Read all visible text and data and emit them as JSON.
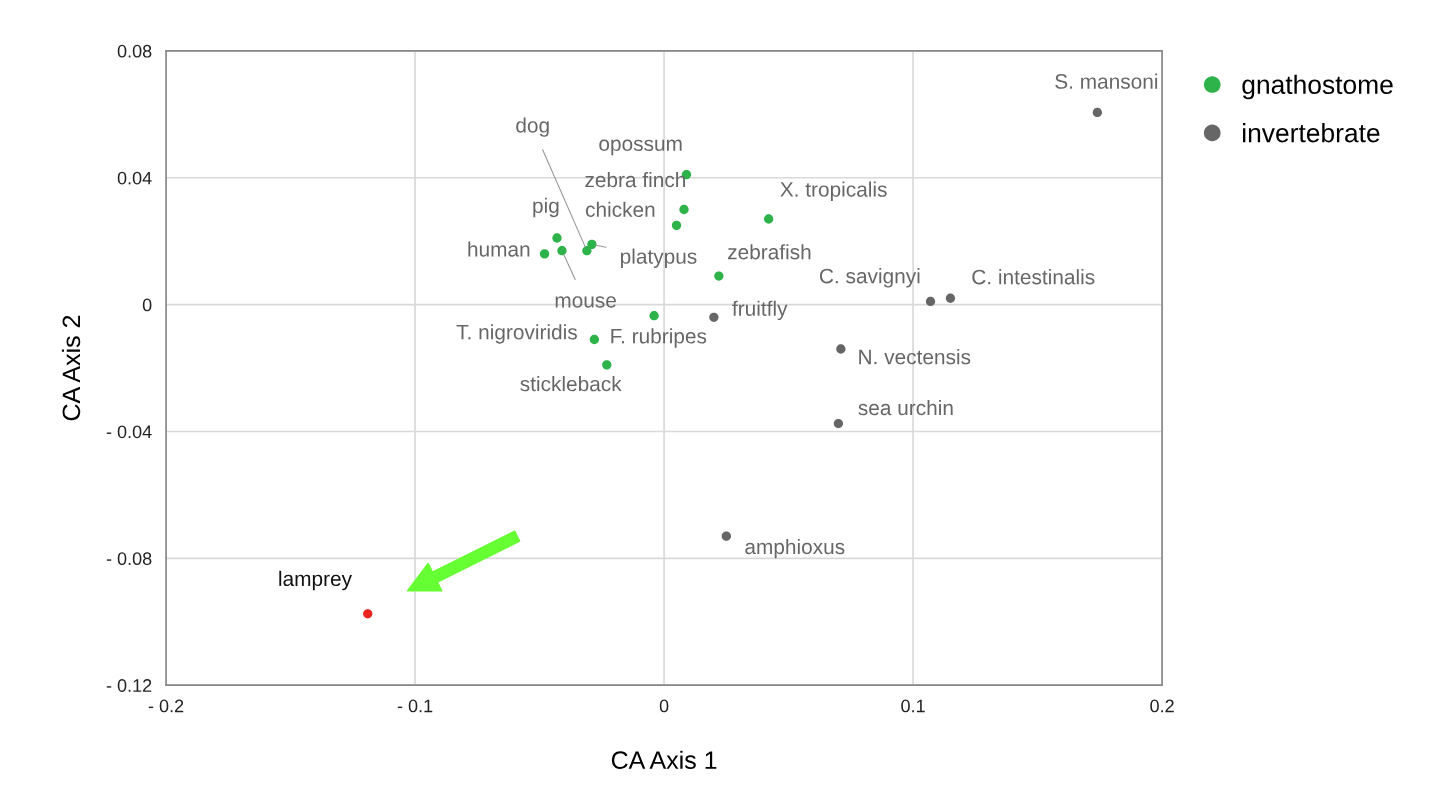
{
  "chart_data": {
    "type": "scatter",
    "xlabel": "CA Axis 1",
    "ylabel": "CA Axis 2",
    "xlim": [
      -0.2,
      0.2
    ],
    "ylim": [
      -0.12,
      0.08
    ],
    "xticks": [
      {
        "value": -0.2,
        "label": "- 0.2"
      },
      {
        "value": -0.1,
        "label": "- 0.1"
      },
      0,
      0.1,
      0.2
    ],
    "yticks": [
      {
        "value": -0.12,
        "label": "- 0.12"
      },
      {
        "value": -0.08,
        "label": "- 0.08"
      },
      {
        "value": -0.04,
        "label": "- 0.04"
      },
      0,
      0.04,
      0.08
    ],
    "grid": true,
    "legend": "right",
    "marker": "circle",
    "series": [
      {
        "name": "gnathostome",
        "color": "#2db34a",
        "x": [
          0.009,
          0.008,
          0.005,
          0.042,
          -0.043,
          -0.048,
          -0.041,
          -0.031,
          -0.029,
          0.022,
          -0.004,
          -0.028,
          -0.023
        ],
        "values": [
          0.041,
          0.03,
          0.025,
          0.027,
          0.021,
          0.016,
          0.017,
          0.017,
          0.019,
          0.009,
          -0.0035,
          -0.011,
          -0.019
        ]
      },
      {
        "name": "invertebrate",
        "color": "#666666",
        "x": [
          0.174,
          0.107,
          0.115,
          0.02,
          0.071,
          0.07,
          0.025
        ],
        "values": [
          0.0606,
          0.001,
          0.002,
          -0.004,
          -0.014,
          -0.0375,
          -0.073
        ]
      },
      {
        "color": "#e8261f",
        "x": [
          -0.119
        ],
        "values": [
          -0.0975
        ]
      }
    ],
    "annotations": [
      {
        "text": "opossum",
        "x": 0.009,
        "y": 0.041
      },
      {
        "text": "zebra finch",
        "x": 0.008,
        "y": 0.03
      },
      {
        "text": "chicken",
        "x": 0.005,
        "y": 0.025
      },
      {
        "text": "X. tropicalis",
        "x": 0.042,
        "y": 0.027
      },
      {
        "text": "pig",
        "x": -0.043,
        "y": 0.021
      },
      {
        "text": "human",
        "x": -0.048,
        "y": 0.016
      },
      {
        "text": "mouse",
        "x": -0.041,
        "y": 0.017
      },
      {
        "text": "dog",
        "x": -0.031,
        "y": 0.017
      },
      {
        "text": "platypus",
        "x": -0.029,
        "y": 0.019
      },
      {
        "text": "zebrafish",
        "x": 0.022,
        "y": 0.009
      },
      {
        "text": "F. rubripes",
        "x": -0.004,
        "y": -0.0035
      },
      {
        "text": "T. nigroviridis",
        "x": -0.028,
        "y": -0.011
      },
      {
        "text": "stickleback",
        "x": -0.023,
        "y": -0.019
      },
      {
        "text": "S. mansoni",
        "x": 0.174,
        "y": 0.0606
      },
      {
        "text": "C. savignyi",
        "x": 0.107,
        "y": 0.001
      },
      {
        "text": "C. intestinalis",
        "x": 0.115,
        "y": 0.002
      },
      {
        "text": "fruitfly",
        "x": 0.02,
        "y": -0.004
      },
      {
        "text": "N. vectensis",
        "x": 0.071,
        "y": -0.014
      },
      {
        "text": "sea urchin",
        "x": 0.07,
        "y": -0.0375
      },
      {
        "text": "amphioxus",
        "x": 0.025,
        "y": -0.073
      },
      {
        "text": "lamprey",
        "x": -0.119,
        "y": -0.0975
      }
    ]
  }
}
